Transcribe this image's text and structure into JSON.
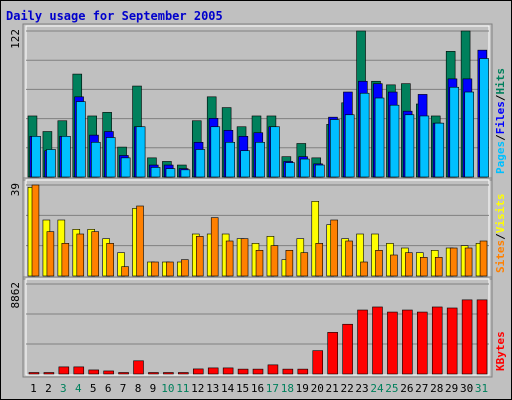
{
  "chart_data": {
    "type": "bar",
    "title": "Daily usage for September 2005",
    "days": [
      "1",
      "2",
      "3",
      "4",
      "5",
      "6",
      "7",
      "8",
      "9",
      "10",
      "11",
      "12",
      "13",
      "14",
      "15",
      "16",
      "17",
      "18",
      "19",
      "20",
      "21",
      "22",
      "23",
      "24",
      "25",
      "26",
      "27",
      "28",
      "29",
      "30",
      "31"
    ],
    "weekend_days": [
      "3",
      "4",
      "10",
      "11",
      "17",
      "18",
      "24",
      "25",
      "31"
    ],
    "colors": {
      "background": "#c0c0c0",
      "title": "#0000cc",
      "pages": "#00c0ff",
      "files": "#0000ff",
      "hits": "#00805c",
      "sites": "#ff8000",
      "visits": "#ffff00",
      "kbytes": "#ff0000",
      "weekday_label": "#000000",
      "weekend_label": "#00805c"
    },
    "panels": [
      {
        "id": "hits-files-pages",
        "ymax_label": "122",
        "ymax": 122,
        "legend": [
          {
            "text": "Pages",
            "color": "#00c0ff"
          },
          {
            "text": "/",
            "color": "#000000"
          },
          {
            "text": "Files",
            "color": "#0000ff"
          },
          {
            "text": "/",
            "color": "#000000"
          },
          {
            "text": "Hits",
            "color": "#00805c"
          }
        ],
        "series": [
          {
            "name": "Hits",
            "color": "#00805c",
            "values": [
              51,
              38,
              47,
              86,
              51,
              54,
              25,
              76,
              16,
              13,
              10,
              47,
              67,
              58,
              42,
              51,
              51,
              17,
              28,
              16,
              44,
              62,
              122,
              80,
              77,
              78,
              61,
              51,
              105,
              122,
              null
            ]
          },
          {
            "name": "Files",
            "color": "#0000ff",
            "values": [
              34,
              22,
              34,
              67,
              35,
              38,
              18,
              42,
              10,
              10,
              7,
              29,
              49,
              39,
              34,
              37,
              42,
              13,
              17,
              11,
              50,
              71,
              80,
              78,
              71,
              55,
              69,
              45,
              82,
              82,
              106
            ]
          },
          {
            "name": "Pages",
            "color": "#00c0ff",
            "values": [
              34,
              23,
              34,
              63,
              29,
              33,
              16,
              42,
              8,
              7,
              6,
              23,
              42,
              29,
              22,
              29,
              42,
              12,
              15,
              10,
              48,
              52,
              70,
              66,
              60,
              52,
              51,
              45,
              75,
              71,
              99
            ]
          }
        ]
      },
      {
        "id": "visits-sites",
        "ymax_label": "39",
        "ymax": 39,
        "legend": [
          {
            "text": "Sites",
            "color": "#ff8000"
          },
          {
            "text": "/",
            "color": "#000000"
          },
          {
            "text": "Visits",
            "color": "#ffff00"
          }
        ],
        "series": [
          {
            "name": "Visits",
            "color": "#ffff00",
            "values": [
              38,
              24,
              24,
              20,
              20,
              16,
              10,
              29,
              6,
              6,
              6,
              18,
              18,
              18,
              16,
              14,
              17,
              7,
              16,
              32,
              22,
              16,
              18,
              18,
              14,
              12,
              10,
              11,
              12,
              13,
              14
            ]
          },
          {
            "name": "Sites",
            "color": "#ff8000",
            "values": [
              39,
              19,
              14,
              18,
              19,
              14,
              4,
              30,
              6,
              6,
              7,
              17,
              25,
              15,
              16,
              11,
              13,
              11,
              10,
              14,
              24,
              15,
              6,
              11,
              9,
              10,
              8,
              8,
              12,
              12,
              15
            ]
          }
        ]
      },
      {
        "id": "kbytes",
        "ymax_label": "8862",
        "ymax": 8862,
        "legend": [
          {
            "text": "KBytes",
            "color": "#ff0000"
          }
        ],
        "series": [
          {
            "name": "KBytes",
            "color": "#ff0000",
            "values": [
              80,
              80,
              700,
              700,
              400,
              300,
              100,
              1300,
              120,
              60,
              60,
              500,
              600,
              600,
              480,
              480,
              900,
              480,
              480,
              2300,
              4100,
              4900,
              6300,
              6600,
              6100,
              6300,
              6100,
              6600,
              6500,
              7300,
              7300
            ]
          }
        ]
      }
    ]
  }
}
